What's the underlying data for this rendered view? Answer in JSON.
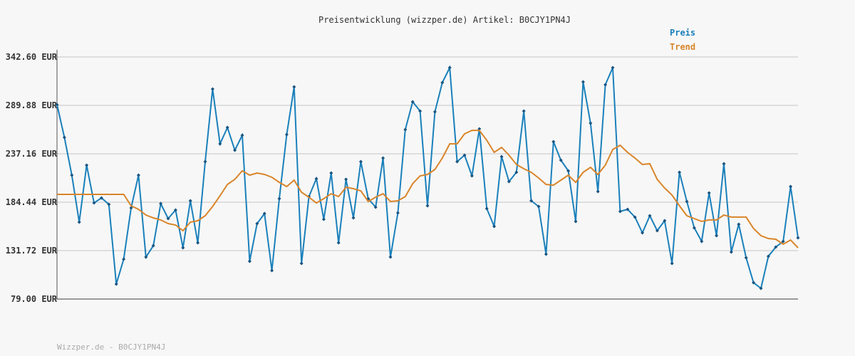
{
  "chart_data": {
    "type": "line",
    "title": "Preisentwicklung (wizzper.de) Artikel: B0CJY1PN4J",
    "footer": "Wizzper.de - B0CJY1PN4J",
    "ylim": [
      79.0,
      342.6
    ],
    "yticks": [
      {
        "value": 79.0,
        "label": "79.00 EUR"
      },
      {
        "value": 131.72,
        "label": "131.72 EUR"
      },
      {
        "value": 184.44,
        "label": "184.44 EUR"
      },
      {
        "value": 237.16,
        "label": "237.16 EUR"
      },
      {
        "value": 289.88,
        "label": "289.88 EUR"
      },
      {
        "value": 342.6,
        "label": "342.60 EUR"
      }
    ],
    "grid": true,
    "legend": "top-right",
    "series": [
      {
        "name": "Preis",
        "color": "#1a80bb",
        "markers": true,
        "values": [
          290.7,
          255.0,
          213.9,
          162.7,
          224.8,
          183.7,
          189.1,
          182.1,
          95.3,
          122.4,
          178.2,
          213.9,
          124.7,
          137.1,
          182.9,
          166.6,
          175.9,
          134.8,
          186.0,
          140.2,
          228.6,
          307.7,
          248.0,
          265.8,
          241.0,
          257.3,
          120.1,
          161.2,
          172.0,
          110.0,
          188.3,
          258.1,
          310.0,
          117.8,
          190.6,
          210.0,
          165.8,
          216.2,
          140.2,
          209.3,
          167.4,
          228.6,
          188.3,
          179.0,
          232.5,
          124.7,
          172.8,
          263.5,
          293.8,
          283.7,
          180.6,
          282.9,
          314.7,
          331.0,
          228.6,
          235.6,
          213.1,
          264.3,
          177.5,
          158.1,
          234.1,
          206.9,
          217.0,
          283.7,
          186.0,
          179.8,
          127.8,
          250.3,
          230.2,
          218.6,
          163.5,
          315.5,
          270.5,
          196.1,
          312.4,
          331.0,
          174.4,
          176.7,
          168.2,
          151.1,
          169.7,
          153.4,
          164.3,
          117.8,
          217.0,
          185.2,
          156.5,
          141.8,
          194.5,
          148.0,
          226.3,
          130.2,
          160.4,
          124.0,
          96.8,
          90.6,
          125.5,
          135.6,
          141.8,
          201.5,
          145.7
        ]
      },
      {
        "name": "Trend",
        "color": "#d9852a",
        "markers": false,
        "values": [
          193.0,
          193.0,
          193.0,
          193.0,
          193.0,
          193.0,
          193.0,
          193.0,
          193.0,
          193.0,
          180.6,
          176.7,
          170.5,
          167.4,
          165.1,
          161.2,
          159.6,
          153.4,
          162.7,
          164.3,
          169.7,
          179.8,
          191.4,
          203.8,
          209.3,
          218.6,
          213.9,
          216.2,
          214.7,
          211.6,
          206.1,
          201.5,
          208.5,
          195.3,
          189.9,
          183.7,
          188.3,
          193.7,
          190.6,
          200.7,
          199.2,
          196.8,
          185.2,
          189.9,
          193.7,
          185.2,
          186.0,
          190.6,
          204.6,
          213.1,
          214.7,
          220.1,
          232.5,
          248.0,
          248.0,
          258.9,
          262.7,
          262.7,
          251.9,
          238.7,
          244.1,
          235.6,
          225.5,
          220.9,
          217.0,
          210.8,
          203.8,
          203.0,
          208.5,
          213.9,
          206.1,
          217.0,
          222.4,
          214.7,
          224.8,
          241.8,
          246.5,
          238.7,
          232.5,
          225.5,
          226.3,
          209.3,
          199.9,
          192.2,
          180.6,
          169.7,
          166.6,
          163.5,
          165.1,
          165.1,
          170.5,
          168.2,
          168.2,
          168.2,
          155.8,
          148.0,
          144.9,
          144.1,
          138.7,
          143.3,
          134.8
        ]
      }
    ]
  }
}
